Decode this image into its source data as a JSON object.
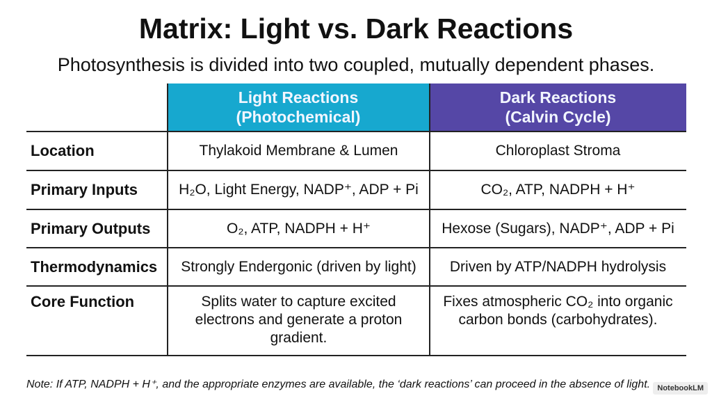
{
  "header": {
    "title": "Matrix: Light vs. Dark Reactions",
    "subtitle": "Photosynthesis is divided into two coupled, mutually dependent phases."
  },
  "table": {
    "columns": [
      {
        "title": "Light Reactions",
        "subtitle": "(Photochemical)"
      },
      {
        "title": "Dark Reactions",
        "subtitle": "(Calvin Cycle)"
      }
    ],
    "rows": [
      [
        "Location",
        "Thylakoid Membrane & Lumen",
        "Chloroplast Stroma"
      ],
      [
        "Primary Inputs",
        "H₂O, Light Energy, NADP⁺, ADP + Pi",
        "CO₂, ATP, NADPH + H⁺"
      ],
      [
        "Primary Outputs",
        "O₂, ATP, NADPH + H⁺",
        "Hexose (Sugars), NADP⁺, ADP + Pi"
      ],
      [
        "Thermodynamics",
        "Strongly Endergonic (driven by light)",
        "Driven by ATP/NADPH hydrolysis"
      ],
      [
        "Core Function",
        "Splits water to capture excited electrons and generate a proton gradient.",
        "Fixes atmospheric CO₂ into organic carbon bonds (carbohydrates)."
      ]
    ]
  },
  "note": "Note: If ATP, NADPH + H⁺, and the appropriate enzymes are available, the ‘dark reactions’ can proceed in the absence of light.",
  "badge": "NotebookLM"
}
